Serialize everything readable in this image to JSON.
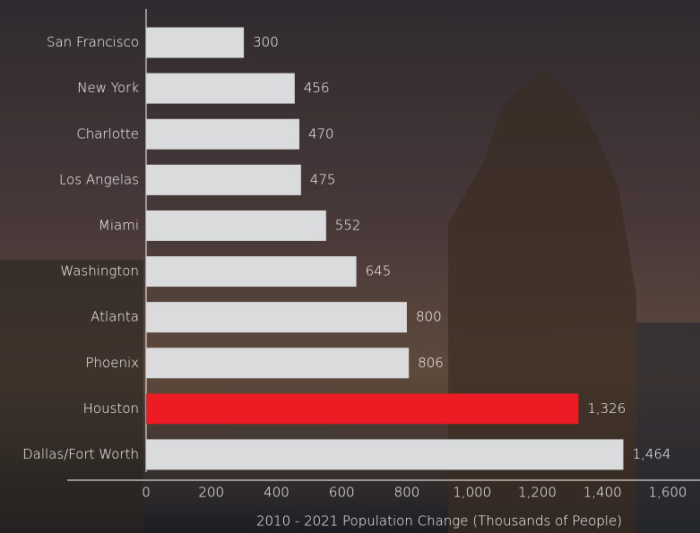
{
  "chart_data": {
    "type": "bar",
    "orientation": "horizontal",
    "x_label": "2010 - 2021 Population Change (Thousands of People)",
    "categories": [
      "San Francisco",
      "New York",
      "Charlotte",
      "Los Angelas",
      "Miami",
      "Washington",
      "Atlanta",
      "Phoenix",
      "Houston",
      "Dallas/Fort Worth"
    ],
    "values": [
      300,
      456,
      470,
      475,
      552,
      645,
      800,
      806,
      1326,
      1464
    ],
    "value_labels": [
      "300",
      "456",
      "470",
      "475",
      "552",
      "645",
      "800",
      "806",
      "1,326",
      "1,464"
    ],
    "color": "#dadbdc",
    "highlight": "Houston",
    "highlight_color": "#ed1c24",
    "xlim": [
      0,
      1600
    ],
    "xticks": [
      0,
      200,
      400,
      600,
      800,
      {
        "value": 1000,
        "label": "1,000"
      },
      {
        "value": 1200,
        "label": "1,200"
      },
      {
        "value": 1400,
        "label": "1,400"
      },
      {
        "value": 1600,
        "label": "1,600"
      }
    ],
    "grid": false
  }
}
